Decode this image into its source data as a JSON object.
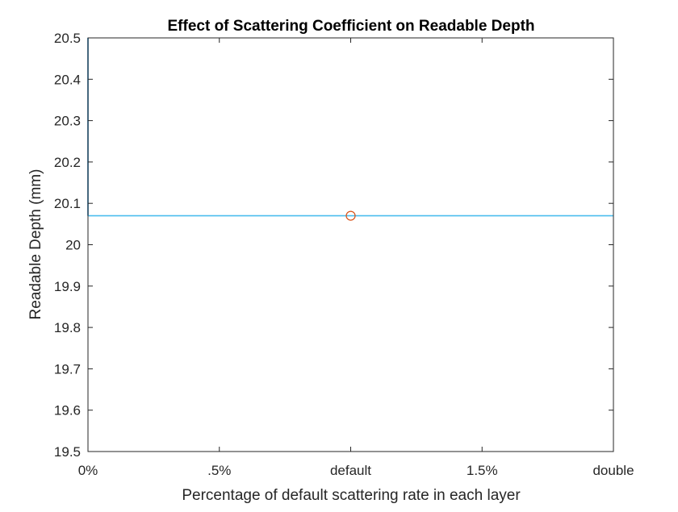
{
  "chart_data": {
    "type": "line",
    "title": "Effect of Scattering Coefficient on Readable Depth",
    "xlabel": "Percentage of default scattering rate in each layer",
    "ylabel": "Readable Depth (mm)",
    "x_tick_labels": [
      "0%",
      ".5%",
      "default",
      "1.5%",
      "double"
    ],
    "x_ticks": [
      0,
      0.5,
      1,
      1.5,
      2
    ],
    "xlim": [
      0,
      2
    ],
    "ylim": [
      19.5,
      20.5
    ],
    "y_ticks": [
      19.5,
      19.6,
      19.7,
      19.8,
      19.9,
      20,
      20.1,
      20.2,
      20.3,
      20.4,
      20.5
    ],
    "grid": false,
    "series": [
      {
        "color": "#0072bd",
        "style": "line",
        "x": [
          0,
          0
        ],
        "y": [
          20.5,
          20.07
        ]
      },
      {
        "color": "#4dbeee",
        "style": "line",
        "x": [
          0,
          2
        ],
        "y": [
          20.07,
          20.07
        ]
      },
      {
        "color": "#d95319",
        "style": "marker-circle",
        "x": [
          1
        ],
        "y": [
          20.07
        ]
      }
    ]
  }
}
